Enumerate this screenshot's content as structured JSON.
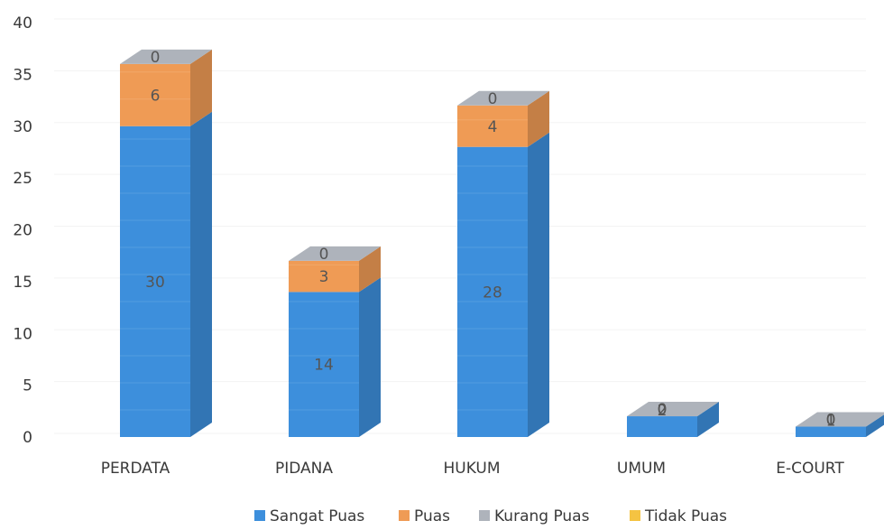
{
  "chart_data": {
    "type": "bar",
    "stacked": true,
    "three_d": true,
    "categories": [
      "PERDATA",
      "PIDANA",
      "HUKUM",
      "UMUM",
      "E-COURT"
    ],
    "series": [
      {
        "name": "Sangat Puas",
        "values": [
          30,
          14,
          28,
          2,
          1
        ],
        "color": "#3d8fdc"
      },
      {
        "name": "Puas",
        "values": [
          6,
          3,
          4,
          0,
          0
        ],
        "color": "#ef9b55"
      },
      {
        "name": "Kurang Puas",
        "values": [
          0,
          0,
          0,
          0,
          0
        ],
        "color": "#aeb3bb"
      },
      {
        "name": "Tidak Puas",
        "values": [
          0,
          0,
          0,
          0,
          0
        ],
        "color": "#f5c342"
      }
    ],
    "title": "",
    "xlabel": "",
    "ylabel": "",
    "ylim": [
      0,
      40
    ],
    "yticks": [
      0,
      5,
      10,
      15,
      20,
      25,
      30,
      35,
      40
    ],
    "grid": false,
    "legend": "bottom"
  }
}
